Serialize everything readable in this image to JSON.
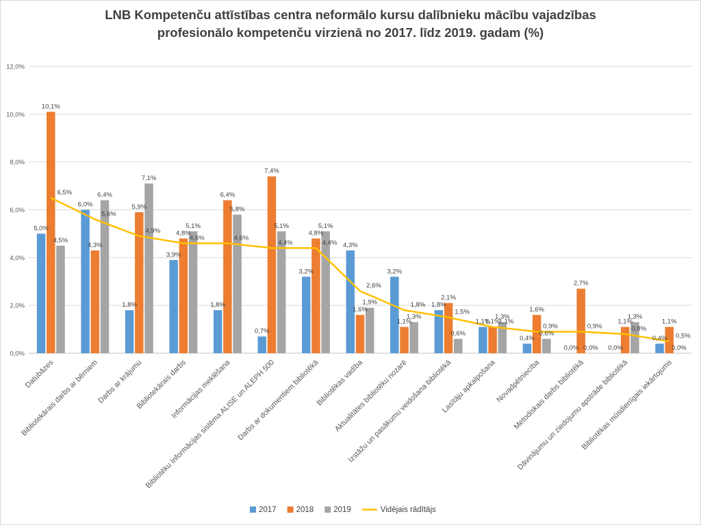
{
  "chart_data": {
    "type": "bar",
    "title_lines": [
      "LNB Kompetenču attīstības centra neformālo kursu dalībnieku mācību vajadzības",
      "profesionālo kompetenču virzienā no 2017. līdz 2019. gadam (%)"
    ],
    "xlabel": "",
    "ylabel": "",
    "ylim": [
      0,
      12
    ],
    "yticks": [
      0,
      2,
      4,
      6,
      8,
      10,
      12
    ],
    "ytick_labels": [
      "0,0%",
      "2,0%",
      "4,0%",
      "6,0%",
      "8,0%",
      "10,0%",
      "12,0%"
    ],
    "grid": true,
    "legend_position": "bottom",
    "categories": [
      "Datubāzes",
      "Bibliotekārais darbs ar bērniem",
      "Darbs ar krājumu",
      "Bibliotekārais darbs",
      "Informācijas meklēšana",
      "Bibliotēku Informācijas sistēma ALISE un ALEPH 500",
      "Darbs ar dokumentiem bibliotēkā",
      "Bibliotēkas vadība",
      "Aktualitātes bibliotēku nozarē",
      "Izstāžu un pasākumu veidošana bibliotēkā",
      "Lasītāju apkalpošana",
      "Novadpētniecība",
      "Metodiskais darbs bibliotēkā",
      "Dāvinājumu un ziedojumu apstrāde bibliotēkā",
      "Bibliotēkas mūsdienīgais iekārtojums"
    ],
    "series": [
      {
        "name": "2017",
        "kind": "bar",
        "color": "#5b9bd5",
        "values": [
          5.0,
          6.0,
          1.8,
          3.9,
          1.8,
          0.7,
          3.2,
          4.3,
          3.2,
          1.8,
          1.1,
          0.4,
          0.0,
          0.0,
          0.4
        ],
        "labels": [
          "5,0%",
          "6,0%",
          "1,8%",
          "3,9%",
          "1,8%",
          "0,7%",
          "3,2%",
          "4,3%",
          "3,2%",
          "1,8%",
          "1,1%",
          "0,4%",
          "0,0%",
          "0,0%",
          "0,4%"
        ]
      },
      {
        "name": "2018",
        "kind": "bar",
        "color": "#ed7d31",
        "values": [
          10.1,
          4.3,
          5.9,
          4.8,
          6.4,
          7.4,
          4.8,
          1.6,
          1.1,
          2.1,
          1.1,
          1.6,
          2.7,
          1.1,
          1.1
        ],
        "labels": [
          "10,1%",
          "4,3%",
          "5,9%",
          "4,8%",
          "6,4%",
          "7,4%",
          "4,8%",
          "1,6%",
          "1,1%",
          "2,1%",
          "1,1%",
          "1,6%",
          "2,7%",
          "1,1%",
          "1,1%"
        ]
      },
      {
        "name": "2019",
        "kind": "bar",
        "color": "#a5a5a5",
        "values": [
          4.5,
          6.4,
          7.1,
          5.1,
          5.8,
          5.1,
          5.1,
          1.9,
          1.3,
          0.6,
          1.3,
          0.6,
          0.0,
          1.3,
          0.0
        ],
        "labels": [
          "4,5%",
          "6,4%",
          "7,1%",
          "5,1%",
          "5,8%",
          "5,1%",
          "5,1%",
          "1,9%",
          "1,3%",
          "0,6%",
          "1,3%",
          "0,6%",
          "0,0%",
          "1,3%",
          "0,0%"
        ]
      },
      {
        "name": "Vidējais rādītājs",
        "kind": "line",
        "color": "#ffc000",
        "values": [
          6.5,
          5.6,
          4.9,
          4.6,
          4.6,
          4.4,
          4.4,
          2.6,
          1.8,
          1.5,
          1.1,
          0.9,
          0.9,
          0.8,
          0.5
        ],
        "labels": [
          "6,5%",
          "5,6%",
          "4,9%",
          "4,6%",
          "4,6%",
          "4,4%",
          "4,4%",
          "2,6%",
          "1,8%",
          "1,5%",
          "1,1%",
          "0,9%",
          "0,9%",
          "0,8%",
          "0,5%"
        ]
      }
    ]
  }
}
